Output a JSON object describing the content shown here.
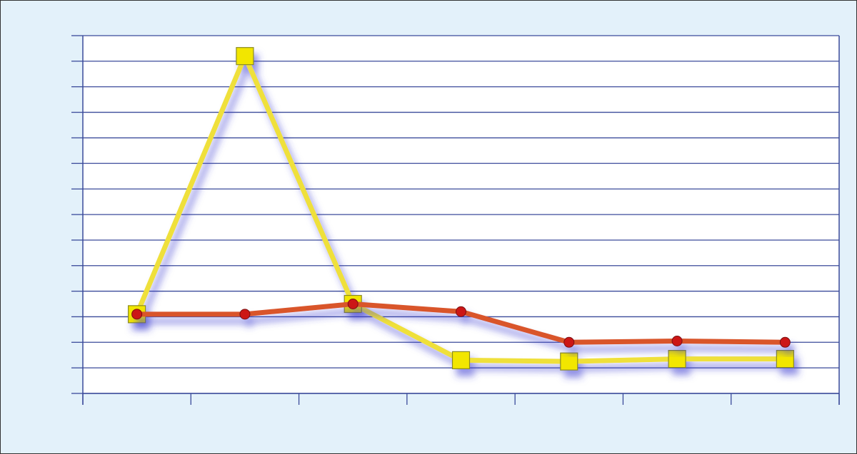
{
  "chart_data": {
    "type": "line",
    "categories": [
      null,
      null,
      null,
      null,
      null,
      null,
      null
    ],
    "series": [
      {
        "color": "#efe03a",
        "marker": "square",
        "marker_color": "#f2e600",
        "values": [
          3.1,
          13.2,
          3.5,
          1.3,
          1.25,
          1.35,
          1.35
        ]
      },
      {
        "color": "#d9542c",
        "marker": "circle",
        "marker_color": "#cc1818",
        "values": [
          3.1,
          3.1,
          3.5,
          3.2,
          2.0,
          2.05,
          2.0
        ]
      }
    ],
    "ylim": [
      0,
      14
    ],
    "yticks": [
      0,
      1,
      2,
      3,
      4,
      5,
      6,
      7,
      8,
      9,
      10,
      11,
      12,
      13,
      14
    ],
    "grid": true,
    "shadow": true
  }
}
